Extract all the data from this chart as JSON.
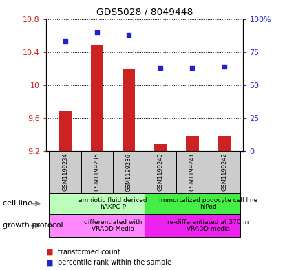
{
  "title": "GDS5028 / 8049448",
  "samples": [
    "GSM1199234",
    "GSM1199235",
    "GSM1199236",
    "GSM1199240",
    "GSM1199241",
    "GSM1199242"
  ],
  "bar_values": [
    9.68,
    10.48,
    10.2,
    9.28,
    9.38,
    9.38
  ],
  "scatter_values": [
    83,
    90,
    88,
    63,
    63,
    64
  ],
  "ylim_left": [
    9.2,
    10.8
  ],
  "ylim_right": [
    0,
    100
  ],
  "yticks_left": [
    9.2,
    9.6,
    10.0,
    10.4,
    10.8
  ],
  "yticks_right": [
    0,
    25,
    50,
    75,
    100
  ],
  "ytick_labels_left": [
    "9.2",
    "9.6",
    "10",
    "10.4",
    "10.8"
  ],
  "ytick_labels_right": [
    "0",
    "25",
    "50",
    "75",
    "100%"
  ],
  "bar_color": "#cc2222",
  "scatter_color": "#2222cc",
  "bar_bottom": 9.2,
  "cell_line_groups": [
    {
      "label": "amniotic fluid derived\nhAKPC-P",
      "start": 0,
      "end": 3,
      "color": "#bbffbb"
    },
    {
      "label": "immortalized podocyte cell line\nhIPod",
      "start": 3,
      "end": 6,
      "color": "#44ee44"
    }
  ],
  "growth_protocol_groups": [
    {
      "label": "differentiated with\nVRADD Media",
      "start": 0,
      "end": 3,
      "color": "#ff88ff"
    },
    {
      "label": "re-differentiated at 37C in\nVRADD media",
      "start": 3,
      "end": 6,
      "color": "#ee22ee"
    }
  ],
  "cell_line_label": "cell line",
  "growth_protocol_label": "growth protocol",
  "legend_bar_label": "transformed count",
  "legend_scatter_label": "percentile rank within the sample",
  "sample_bg_color": "#cccccc",
  "bar_width": 0.4
}
